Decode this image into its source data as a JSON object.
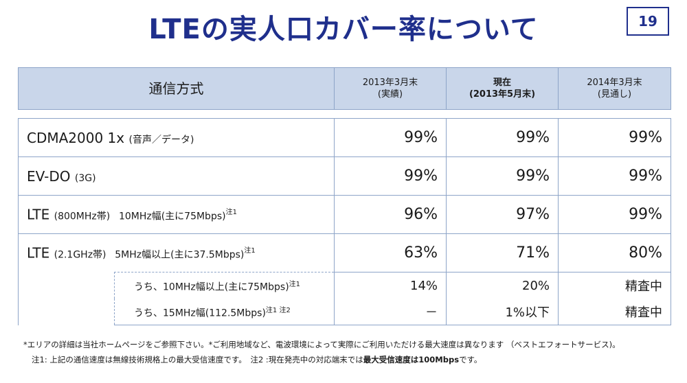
{
  "title": "LTEの実人口カバー率について",
  "page_number": "19",
  "header": {
    "method": "通信方式",
    "col1_line1": "2013年3月末",
    "col1_line2": "(実績)",
    "col2_line1": "現在",
    "col2_line2": "(2013年5月末)",
    "col3_line1": "2014年3月末",
    "col3_line2": "(見通し)"
  },
  "rows": [
    {
      "name": "CDMA2000 1x",
      "note": "(音声／データ)",
      "v1": "99%",
      "v2": "99%",
      "v3": "99%"
    },
    {
      "name": "EV-DO",
      "note": "(3G)",
      "v1": "99%",
      "v2": "99%",
      "v3": "99%"
    },
    {
      "name": "LTE",
      "note": "(800MHz帯)",
      "detail": "10MHz幅(主に75Mbps)",
      "sup": "注1",
      "v1": "96%",
      "v2": "97%",
      "v3": "99%"
    },
    {
      "name": "LTE",
      "note": "(2.1GHz帯)",
      "detail": "5MHz幅以上(主に37.5Mbps)",
      "sup": "注1",
      "v1": "63%",
      "v2": "71%",
      "v3": "80%"
    }
  ],
  "subrows": [
    {
      "label": "うち、10MHz幅以上(主に75Mbps)",
      "sup": "注1",
      "v1": "14%",
      "v2": "20%",
      "v3": "精査中"
    },
    {
      "label": "うち、15MHz幅(112.5Mbps)",
      "sup": "注1 注2",
      "v1": "－",
      "v2": "1%以下",
      "v3": "精査中"
    }
  ],
  "notes": {
    "line1": "*エリアの詳細は当社ホームページをご参照下さい。*ご利用地域など、電波環境によって実際にご利用いただける最大速度は異なります （ベストエフォートサービス)。",
    "line2_a": "注1: 上記の通信速度は無線技術規格上の最大受信速度です。　注2 :現在発売中の対応端末では",
    "line2_b": "最大受信速度は100Mbps",
    "line2_c": "です。"
  }
}
